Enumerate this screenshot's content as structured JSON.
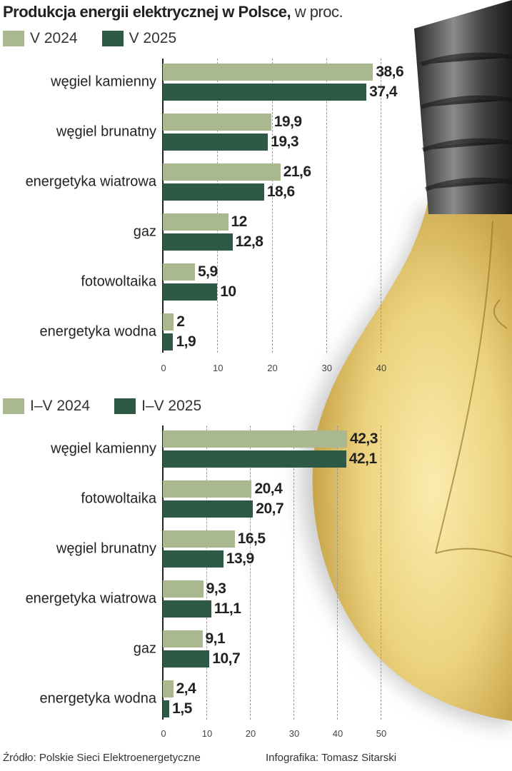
{
  "title": {
    "bold": "Produkcja energii elektrycznej w Polsce,",
    "unit": " w proc."
  },
  "colors": {
    "light": "#a9b88e",
    "dark": "#2e5a45"
  },
  "chart_data": [
    {
      "type": "bar",
      "orientation": "horizontal",
      "categories": [
        "węgiel kamienny",
        "węgiel brunatny",
        "energetyka wiatrowa",
        "gaz",
        "fotowoltaika",
        "energetyka wodna"
      ],
      "series": [
        {
          "name": "V 2024",
          "color": "#a9b88e",
          "values": [
            38.6,
            19.9,
            21.6,
            12,
            5.9,
            2
          ],
          "labels": [
            "38,6",
            "19,9",
            "21,6",
            "12",
            "5,9",
            "2"
          ]
        },
        {
          "name": "V 2025",
          "color": "#2e5a45",
          "values": [
            37.4,
            19.3,
            18.6,
            12.8,
            10,
            1.9
          ],
          "labels": [
            "37,4",
            "19,3",
            "18,6",
            "12,8",
            "10",
            "1,9"
          ]
        }
      ],
      "xlim": [
        0,
        40
      ],
      "ticks": [
        "0",
        "10",
        "20",
        "30",
        "40"
      ],
      "grid": true,
      "legend": "top-left"
    },
    {
      "type": "bar",
      "orientation": "horizontal",
      "categories": [
        "węgiel kamienny",
        "fotowoltaika",
        "węgiel brunatny",
        "energetyka wiatrowa",
        "gaz",
        "energetyka wodna"
      ],
      "series": [
        {
          "name": "I–V 2024",
          "color": "#a9b88e",
          "values": [
            42.3,
            20.4,
            16.5,
            9.3,
            9.1,
            2.4
          ],
          "labels": [
            "42,3",
            "20,4",
            "16,5",
            "9,3",
            "9,1",
            "2,4"
          ]
        },
        {
          "name": "I–V 2025",
          "color": "#2e5a45",
          "values": [
            42.1,
            20.7,
            13.9,
            11.1,
            10.7,
            1.5
          ],
          "labels": [
            "42,1",
            "20,7",
            "13,9",
            "11,1",
            "10,7",
            "1,5"
          ]
        }
      ],
      "xlim": [
        0,
        50
      ],
      "ticks": [
        "0",
        "10",
        "20",
        "30",
        "40",
        "50"
      ],
      "grid": true,
      "legend": "top-left"
    }
  ],
  "footer": {
    "source": "Źródło: Polskie Sieci Elektroenergetyczne",
    "credit": "Infografika: Tomasz Sitarski"
  }
}
